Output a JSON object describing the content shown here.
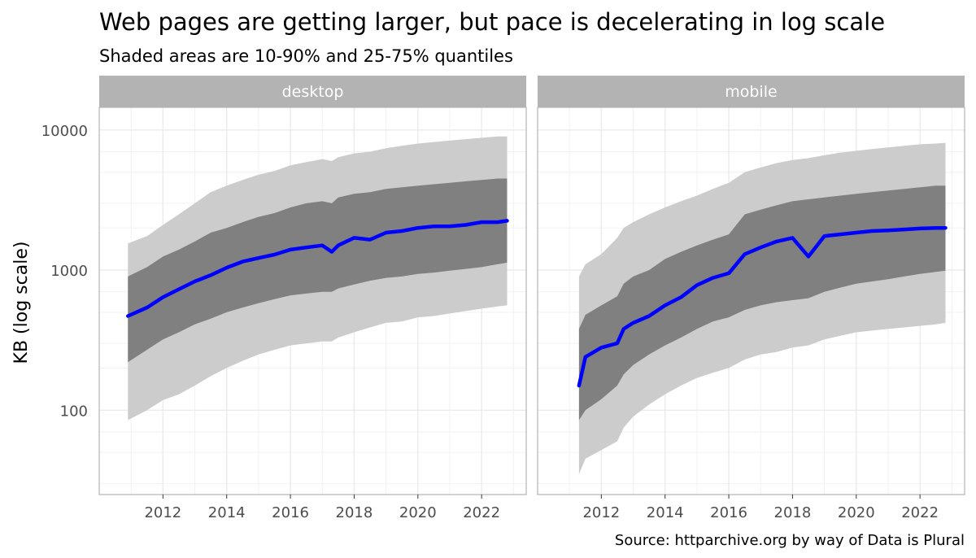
{
  "chart_data": {
    "type": "area",
    "title": "Web pages are getting larger, but pace is decelerating in log scale",
    "subtitle": "Shaded areas are 10-90% and 25-75% quantiles",
    "ylabel": "KB (log scale)",
    "xlabel": "",
    "yscale": "log",
    "caption": "Source: httparchive.org by way of Data is Plural",
    "x_ticks": [
      2012,
      2014,
      2016,
      2018,
      2020,
      2022
    ],
    "y_ticks": [
      100,
      1000,
      10000
    ],
    "xlim": [
      2010.0,
      2023.4
    ],
    "ylim": [
      25,
      14500
    ],
    "grid": true,
    "colors": {
      "median": "#0000ff",
      "band_10_90": "#cccccc",
      "band_25_75": "#808080",
      "strip": "#b3b3b3",
      "grid": "#ebebeb",
      "panel_border": "#b3b3b3"
    },
    "panels": [
      {
        "facet": "desktop",
        "x": [
          2010.9,
          2011.5,
          2012.0,
          2012.5,
          2013.0,
          2013.5,
          2014.0,
          2014.5,
          2015.0,
          2015.5,
          2016.0,
          2016.5,
          2017.0,
          2017.3,
          2017.5,
          2018.0,
          2018.5,
          2019.0,
          2019.5,
          2020.0,
          2020.5,
          2021.0,
          2021.5,
          2022.0,
          2022.5,
          2022.8
        ],
        "p10": [
          85,
          100,
          118,
          130,
          150,
          175,
          200,
          225,
          250,
          270,
          290,
          300,
          310,
          310,
          330,
          360,
          390,
          420,
          430,
          460,
          470,
          490,
          510,
          530,
          550,
          560
        ],
        "p25": [
          220,
          270,
          320,
          360,
          410,
          450,
          500,
          540,
          580,
          620,
          660,
          680,
          700,
          700,
          740,
          790,
          840,
          880,
          900,
          940,
          960,
          990,
          1020,
          1050,
          1100,
          1130
        ],
        "p50": [
          470,
          540,
          640,
          730,
          830,
          920,
          1040,
          1150,
          1220,
          1290,
          1400,
          1450,
          1500,
          1350,
          1500,
          1700,
          1650,
          1850,
          1900,
          2000,
          2050,
          2050,
          2100,
          2200,
          2200,
          2250
        ],
        "p75": [
          900,
          1050,
          1250,
          1400,
          1600,
          1850,
          2000,
          2200,
          2400,
          2550,
          2800,
          3000,
          3100,
          3000,
          3300,
          3500,
          3600,
          3800,
          3900,
          4000,
          4100,
          4200,
          4300,
          4400,
          4500,
          4500
        ],
        "p90": [
          1550,
          1750,
          2100,
          2500,
          3000,
          3600,
          4000,
          4400,
          4800,
          5100,
          5600,
          5900,
          6200,
          6000,
          6400,
          6800,
          7000,
          7400,
          7700,
          8000,
          8200,
          8400,
          8600,
          8800,
          9000,
          9000
        ]
      },
      {
        "facet": "mobile",
        "x": [
          2011.3,
          2011.5,
          2012.0,
          2012.5,
          2012.7,
          2013.0,
          2013.5,
          2014.0,
          2014.5,
          2015.0,
          2015.5,
          2016.0,
          2016.5,
          2017.0,
          2017.5,
          2018.0,
          2018.5,
          2019.0,
          2019.5,
          2020.0,
          2020.5,
          2021.0,
          2021.5,
          2022.0,
          2022.5,
          2022.8
        ],
        "p10": [
          35,
          45,
          52,
          60,
          75,
          90,
          110,
          130,
          150,
          170,
          185,
          200,
          230,
          250,
          260,
          280,
          290,
          320,
          340,
          360,
          370,
          380,
          390,
          400,
          410,
          420
        ],
        "p25": [
          85,
          100,
          120,
          150,
          180,
          210,
          250,
          290,
          330,
          380,
          430,
          460,
          520,
          560,
          590,
          610,
          630,
          700,
          750,
          800,
          830,
          860,
          900,
          940,
          970,
          990
        ],
        "p50": [
          150,
          240,
          280,
          300,
          380,
          420,
          470,
          560,
          640,
          780,
          880,
          950,
          1300,
          1450,
          1600,
          1700,
          1250,
          1750,
          1800,
          1850,
          1900,
          1920,
          1950,
          1980,
          2000,
          2000
        ],
        "p75": [
          380,
          480,
          560,
          650,
          800,
          900,
          1000,
          1200,
          1350,
          1500,
          1650,
          1800,
          2500,
          2700,
          2900,
          3100,
          3200,
          3300,
          3400,
          3500,
          3600,
          3700,
          3800,
          3900,
          4000,
          4000
        ],
        "p90": [
          900,
          1100,
          1300,
          1700,
          2000,
          2200,
          2500,
          2800,
          3100,
          3400,
          3800,
          4200,
          5000,
          5400,
          5800,
          6100,
          6300,
          6600,
          6900,
          7100,
          7300,
          7500,
          7700,
          7900,
          8000,
          8100
        ]
      }
    ]
  }
}
